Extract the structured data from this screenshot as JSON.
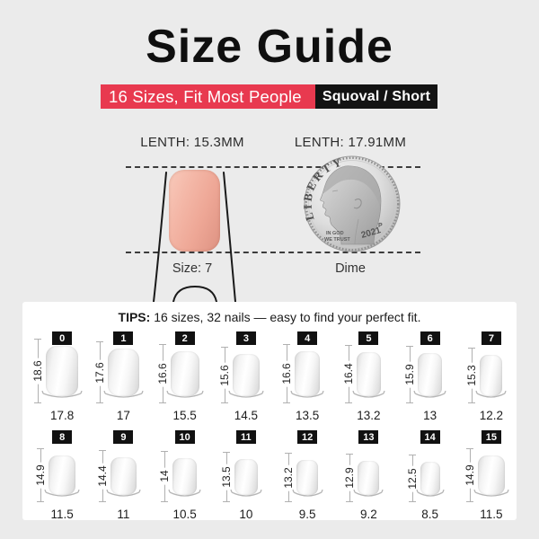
{
  "page": {
    "background": "#ebebeb",
    "panel_background": "#ffffff",
    "accent_red": "#e8394f",
    "banner_black": "#131313",
    "sample_nail_color": "#eea796"
  },
  "header": {
    "title": "Size Guide",
    "banner": {
      "left_text": "16 Sizes, Fit Most People",
      "right_text": "Squoval / Short"
    }
  },
  "comparison": {
    "nail": {
      "length_label": "LENTH: 15.3MM",
      "size_label": "Size: 7"
    },
    "dime": {
      "length_label": "LENTH: 17.91MM",
      "caption": "Dime",
      "coin": {
        "liberty": "LIBERTY",
        "motto_line1": "IN GOD",
        "motto_line2": "WE TRUST",
        "year": "2021",
        "mint_mark": "P"
      }
    }
  },
  "tips": {
    "label": "TIPS:",
    "text": "16 sizes, 32 nails — easy to find your perfect fit."
  },
  "size_grid": {
    "rows": [
      {
        "sizes": [
          {
            "id": "0",
            "length_mm": "18.6",
            "width_mm": "17.8"
          },
          {
            "id": "1",
            "length_mm": "17.6",
            "width_mm": "17"
          },
          {
            "id": "2",
            "length_mm": "16.6",
            "width_mm": "15.5"
          },
          {
            "id": "3",
            "length_mm": "15.6",
            "width_mm": "14.5"
          },
          {
            "id": "4",
            "length_mm": "16.6",
            "width_mm": "13.5"
          },
          {
            "id": "5",
            "length_mm": "16.4",
            "width_mm": "13.2"
          },
          {
            "id": "6",
            "length_mm": "15.9",
            "width_mm": "13"
          },
          {
            "id": "7",
            "length_mm": "15.3",
            "width_mm": "12.2"
          }
        ]
      },
      {
        "sizes": [
          {
            "id": "8",
            "length_mm": "14.9",
            "width_mm": "11.5"
          },
          {
            "id": "9",
            "length_mm": "14.4",
            "width_mm": "11"
          },
          {
            "id": "10",
            "length_mm": "14",
            "width_mm": "10.5"
          },
          {
            "id": "11",
            "length_mm": "13.5",
            "width_mm": "10"
          },
          {
            "id": "12",
            "length_mm": "13.2",
            "width_mm": "9.5"
          },
          {
            "id": "13",
            "length_mm": "12.9",
            "width_mm": "9.2"
          },
          {
            "id": "14",
            "length_mm": "12.5",
            "width_mm": "8.5"
          },
          {
            "id": "15",
            "length_mm": "14.9",
            "width_mm": "11.5"
          }
        ]
      }
    ]
  }
}
